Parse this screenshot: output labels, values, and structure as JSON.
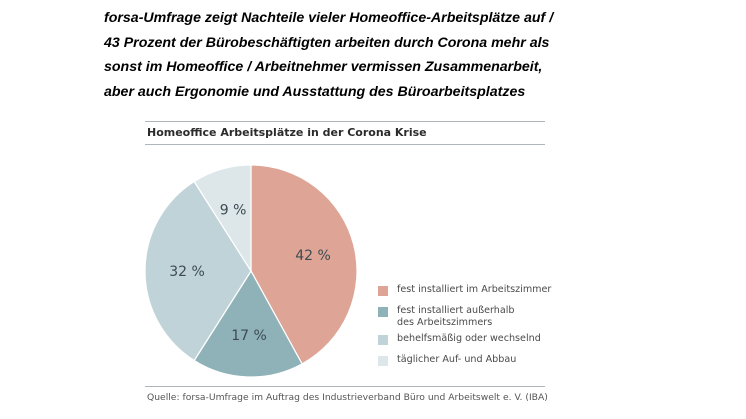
{
  "headline": {
    "lines": [
      "forsa-Umfrage zeigt Nachteile vieler Homeoffice-Arbeitsplätze auf /",
      "43 Prozent der Bürobeschäftigten arbeiten durch Corona mehr als",
      "sonst im Homeoffice / Arbeitnehmer vermissen Zusammenarbeit,",
      "aber auch Ergonomie und Ausstattung des Büroarbeitsplatzes"
    ]
  },
  "source": "Quelle: forsa-Umfrage im Auftrag des Industrieverband Büro und Arbeitswelt e. V. (IBA)",
  "chart_data": {
    "type": "pie",
    "title": "Homeoffice Arbeitsplätze in der Corona Krise",
    "legend_position": "right",
    "slices": [
      {
        "label": "fest installiert im Arbeitszimmer",
        "value": 42,
        "display": "42 %",
        "color": "#dea596"
      },
      {
        "label": "fest installiert außerhalb\ndes Arbeitszimmers",
        "value": 17,
        "display": "17 %",
        "color": "#8fb1b8"
      },
      {
        "label": "behelfsmäßig oder wechselnd",
        "value": 32,
        "display": "32 %",
        "color": "#c0d3d8"
      },
      {
        "label": "täglicher Auf- und Abbau",
        "value": 9,
        "display": "9 %",
        "color": "#dde6e9"
      }
    ]
  }
}
